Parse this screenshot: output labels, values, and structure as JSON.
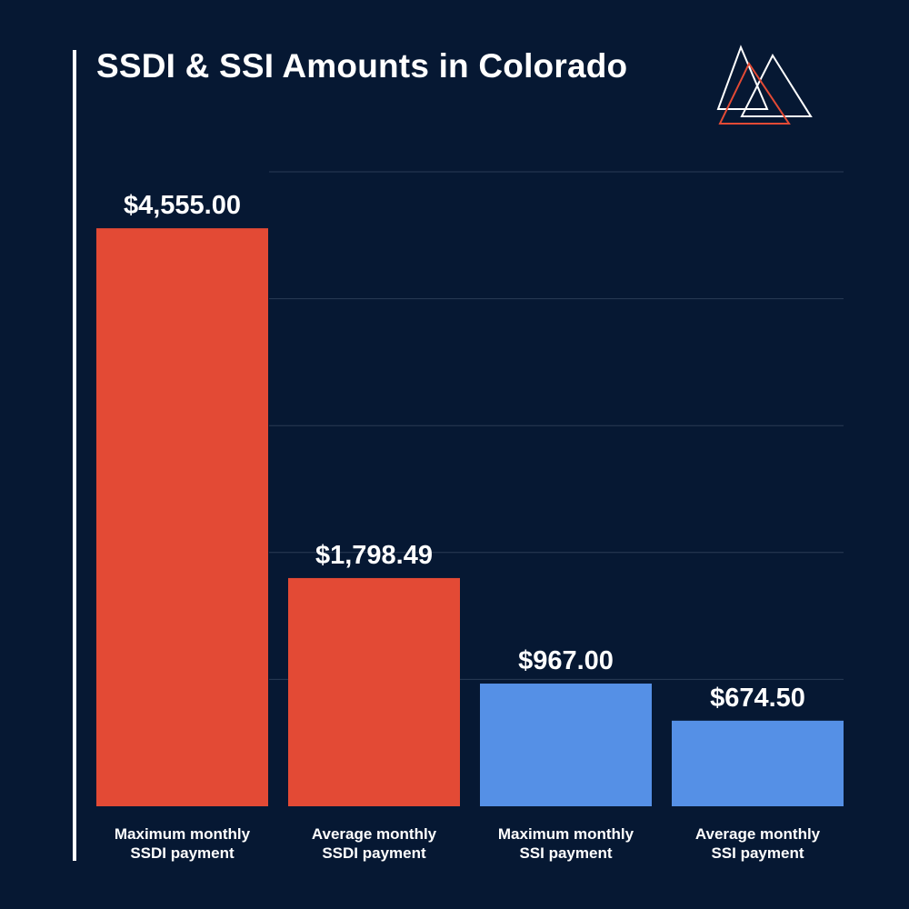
{
  "title": "SSDI & SSI Amounts in Colorado",
  "chart_data": {
    "type": "bar",
    "title": "SSDI & SSI Amounts in Colorado",
    "xlabel": "",
    "ylabel": "",
    "ylim": [
      0,
      5000
    ],
    "grid": true,
    "categories": [
      [
        "Maximum monthly",
        "SSDI payment"
      ],
      [
        "Average monthly",
        "SSDI payment"
      ],
      [
        "Maximum monthly",
        "SSI payment"
      ],
      [
        "Average monthly",
        "SSI payment"
      ]
    ],
    "values": [
      4555.0,
      1798.49,
      967.0,
      674.5
    ],
    "value_labels": [
      "$4,555.00",
      "$1,798.49",
      "$967.00",
      "$674.50"
    ],
    "colors": [
      "#e34a35",
      "#e34a35",
      "#5590e6",
      "#5590e6"
    ]
  },
  "colors": {
    "background": "#061833",
    "ssdi": "#e34a35",
    "ssi": "#5590e6",
    "grid": "#2a3a55",
    "text": "#ffffff"
  },
  "logo_icon": "triangles-logo-icon"
}
